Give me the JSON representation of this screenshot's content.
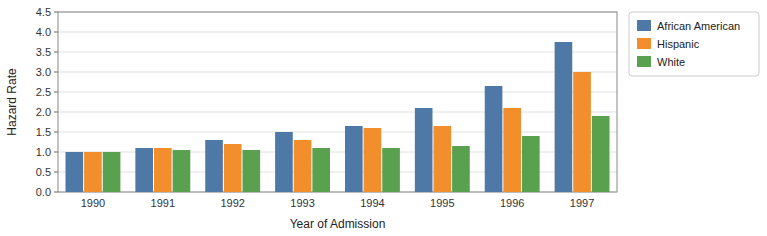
{
  "chart_data": {
    "type": "bar",
    "xlabel": "Year of Admission",
    "ylabel": "Hazard Rate",
    "categories": [
      "1990",
      "1991",
      "1992",
      "1993",
      "1994",
      "1995",
      "1996",
      "1997"
    ],
    "series": [
      {
        "name": "African American",
        "values": [
          1.0,
          1.1,
          1.3,
          1.5,
          1.65,
          2.1,
          2.65,
          3.75
        ]
      },
      {
        "name": "Hispanic",
        "values": [
          1.0,
          1.1,
          1.2,
          1.3,
          1.6,
          1.65,
          2.1,
          3.0
        ]
      },
      {
        "name": "White",
        "values": [
          1.0,
          1.05,
          1.05,
          1.1,
          1.1,
          1.15,
          1.4,
          1.9
        ]
      }
    ],
    "ylim": [
      0,
      4.5
    ],
    "yticks": [
      {
        "value": 0.0,
        "label": "0.0"
      },
      0.5,
      {
        "value": 1.0,
        "label": "1.0"
      },
      1.5,
      {
        "value": 2.0,
        "label": "2.0"
      },
      2.5,
      {
        "value": 3.0,
        "label": "3.0"
      },
      3.5,
      {
        "value": 4.0,
        "label": "4.0"
      },
      4.5
    ],
    "grid": true,
    "legend": "upper right"
  }
}
